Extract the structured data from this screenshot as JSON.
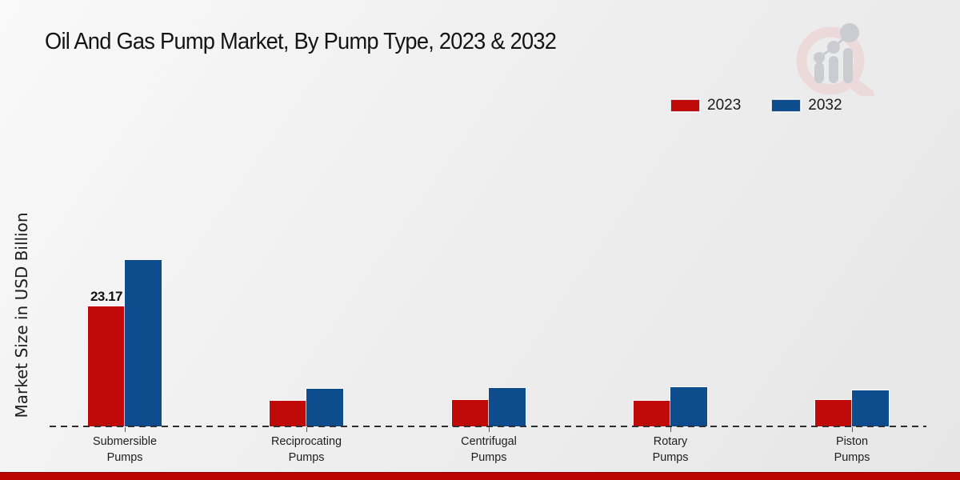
{
  "chart_data": {
    "type": "bar",
    "title": "Oil And Gas Pump Market, By Pump Type, 2023 & 2032",
    "ylabel": "Market Size in USD Billion",
    "xlabel": "",
    "categories": [
      "Submersible\nPumps",
      "Reciprocating\nPumps",
      "Centrifugal\nPumps",
      "Rotary\nPumps",
      "Piston\nPumps"
    ],
    "series": [
      {
        "name": "2023",
        "color": "#c00a0a",
        "values": [
          23.17,
          4.9,
          5.1,
          4.9,
          5.1
        ]
      },
      {
        "name": "2032",
        "color": "#0d4d8d",
        "values": [
          32.2,
          7.3,
          7.4,
          7.6,
          7.0
        ]
      }
    ],
    "annotations": [
      {
        "category_index": 0,
        "series_index": 0,
        "text": "23.17"
      }
    ],
    "legend_position": "top-right",
    "grid": false,
    "baseline_style": "dashed",
    "ylim": [
      0,
      35
    ]
  },
  "branding": {
    "logo_name": "market-research-future-logo",
    "footer_color": "#bb0502"
  }
}
